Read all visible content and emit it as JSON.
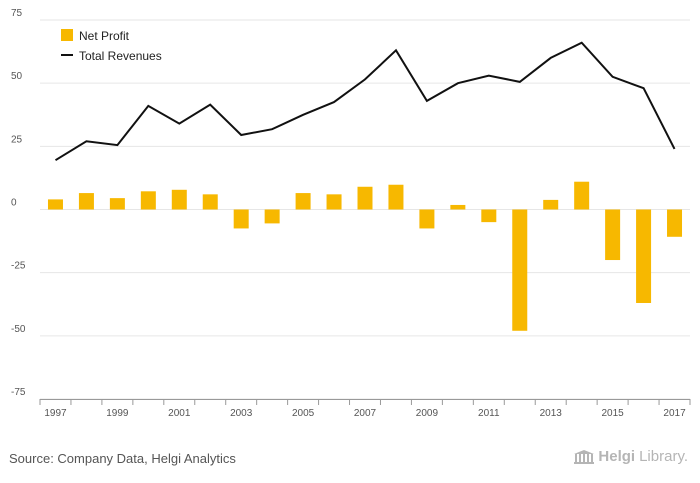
{
  "chart_data": {
    "type": "bar",
    "x": [
      1997,
      1998,
      1999,
      2000,
      2001,
      2002,
      2003,
      2004,
      2005,
      2006,
      2007,
      2008,
      2009,
      2010,
      2011,
      2012,
      2013,
      2014,
      2015,
      2016,
      2017
    ],
    "x_tick_labels": [
      "1997",
      "1999",
      "2001",
      "2003",
      "2005",
      "2007",
      "2009",
      "2011",
      "2013",
      "2015",
      "2017"
    ],
    "y_tick_labels": [
      "75",
      "50",
      "25",
      "0",
      "-25",
      "-50",
      "-75"
    ],
    "ylim": [
      -75,
      75
    ],
    "series": [
      {
        "name": "Net Profit",
        "type": "bar",
        "color": "#f7b800",
        "values": [
          4.0,
          6.5,
          4.5,
          7.2,
          7.8,
          6.0,
          -7.5,
          -5.5,
          6.5,
          6.0,
          9.0,
          9.8,
          -7.5,
          1.8,
          -5.0,
          -48.0,
          3.8,
          11.0,
          -20.0,
          -37.0,
          -10.8
        ]
      },
      {
        "name": "Total Revenues",
        "type": "line",
        "color": "#111111",
        "values": [
          19.5,
          27.0,
          25.5,
          41.0,
          34.0,
          41.5,
          29.5,
          31.8,
          37.5,
          42.5,
          51.5,
          63.0,
          43.0,
          50.0,
          53.0,
          50.5,
          60.0,
          66.0,
          52.5,
          48.0,
          24.0
        ]
      }
    ],
    "title": "",
    "xlabel": "",
    "ylabel": "",
    "grid": true,
    "legend_position": "top-left"
  },
  "footer": {
    "source": "Source: Company Data, Helgi Analytics",
    "brand_name": "Helgi",
    "brand_suffix": "Library."
  }
}
